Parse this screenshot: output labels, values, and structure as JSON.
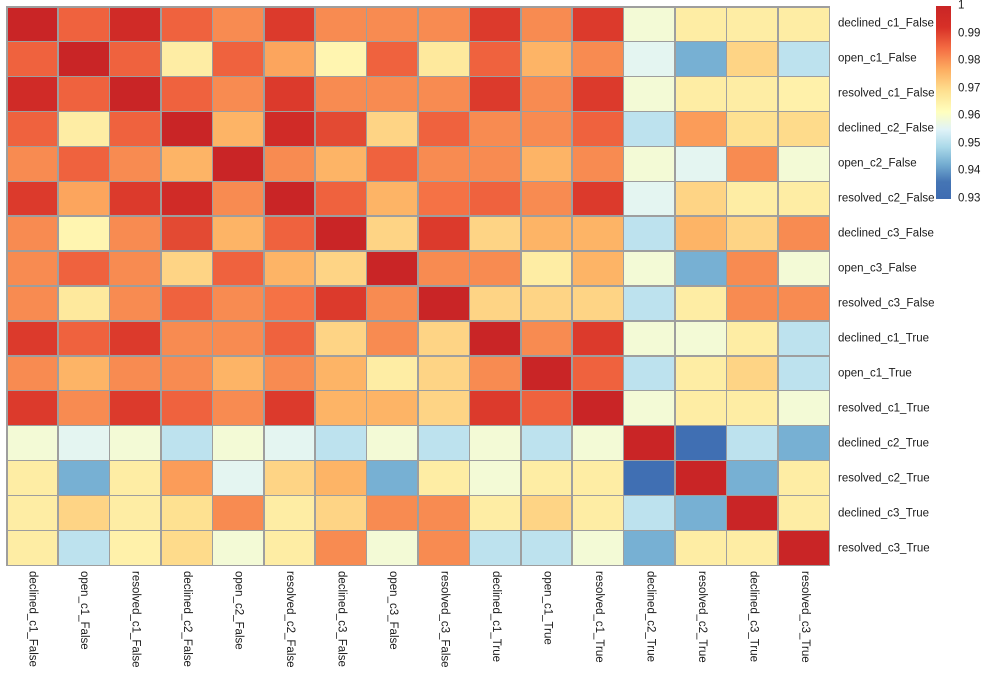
{
  "figure": {
    "background": "#ffffff",
    "grid_line_color": "#9e9e9e",
    "label_color": "#1a1a1a"
  },
  "chart_data": {
    "type": "heatmap",
    "title": "",
    "xlabel": "",
    "ylabel": "",
    "x_labels": [
      "declined_c1_False",
      "open_c1_False",
      "resolved_c1_False",
      "declined_c2_False",
      "open_c2_False",
      "resolved_c2_False",
      "declined_c3_False",
      "open_c3_False",
      "resolved_c3_False",
      "declined_c1_True",
      "open_c1_True",
      "resolved_c1_True",
      "declined_c2_True",
      "resolved_c2_True",
      "declined_c3_True",
      "resolved_c3_True"
    ],
    "y_labels": [
      "declined_c1_False",
      "open_c1_False",
      "resolved_c1_False",
      "declined_c2_False",
      "open_c2_False",
      "resolved_c2_False",
      "declined_c3_False",
      "open_c3_False",
      "resolved_c3_False",
      "declined_c1_True",
      "open_c1_True",
      "resolved_c1_True",
      "declined_c2_True",
      "resolved_c2_True",
      "declined_c3_True",
      "resolved_c3_True"
    ],
    "matrix": [
      [
        1.0,
        0.986,
        0.996,
        0.986,
        0.981,
        0.991,
        0.981,
        0.981,
        0.981,
        0.991,
        0.981,
        0.991,
        0.959,
        0.966,
        0.966,
        0.966
      ],
      [
        0.986,
        1.0,
        0.986,
        0.966,
        0.986,
        0.978,
        0.964,
        0.986,
        0.967,
        0.986,
        0.976,
        0.981,
        0.956,
        0.943,
        0.971,
        0.951
      ],
      [
        0.996,
        0.986,
        1.0,
        0.986,
        0.981,
        0.991,
        0.981,
        0.981,
        0.981,
        0.991,
        0.981,
        0.991,
        0.959,
        0.966,
        0.966,
        0.965
      ],
      [
        0.986,
        0.966,
        0.986,
        1.0,
        0.976,
        0.996,
        0.989,
        0.971,
        0.986,
        0.981,
        0.981,
        0.986,
        0.951,
        0.979,
        0.969,
        0.97
      ],
      [
        0.981,
        0.986,
        0.981,
        0.976,
        1.0,
        0.981,
        0.976,
        0.986,
        0.981,
        0.981,
        0.976,
        0.981,
        0.959,
        0.956,
        0.981,
        0.959
      ],
      [
        0.991,
        0.978,
        0.991,
        0.996,
        0.981,
        1.0,
        0.986,
        0.976,
        0.984,
        0.986,
        0.981,
        0.991,
        0.956,
        0.971,
        0.966,
        0.966
      ],
      [
        0.981,
        0.964,
        0.981,
        0.989,
        0.976,
        0.986,
        1.0,
        0.971,
        0.991,
        0.971,
        0.976,
        0.976,
        0.951,
        0.976,
        0.971,
        0.981
      ],
      [
        0.981,
        0.986,
        0.981,
        0.971,
        0.986,
        0.976,
        0.971,
        1.0,
        0.981,
        0.981,
        0.966,
        0.976,
        0.959,
        0.943,
        0.981,
        0.959
      ],
      [
        0.981,
        0.967,
        0.981,
        0.986,
        0.981,
        0.984,
        0.991,
        0.981,
        1.0,
        0.971,
        0.971,
        0.971,
        0.951,
        0.966,
        0.981,
        0.981
      ],
      [
        0.991,
        0.986,
        0.991,
        0.981,
        0.981,
        0.986,
        0.971,
        0.981,
        0.971,
        1.0,
        0.981,
        0.991,
        0.959,
        0.959,
        0.966,
        0.951
      ],
      [
        0.981,
        0.976,
        0.981,
        0.981,
        0.976,
        0.981,
        0.976,
        0.966,
        0.971,
        0.981,
        1.0,
        0.986,
        0.951,
        0.966,
        0.971,
        0.951
      ],
      [
        0.991,
        0.981,
        0.991,
        0.986,
        0.981,
        0.991,
        0.976,
        0.976,
        0.971,
        0.991,
        0.986,
        1.0,
        0.959,
        0.966,
        0.966,
        0.959
      ],
      [
        0.959,
        0.956,
        0.959,
        0.951,
        0.959,
        0.956,
        0.951,
        0.959,
        0.951,
        0.959,
        0.951,
        0.959,
        1.0,
        0.932,
        0.951,
        0.943
      ],
      [
        0.966,
        0.943,
        0.966,
        0.979,
        0.956,
        0.971,
        0.976,
        0.943,
        0.966,
        0.959,
        0.966,
        0.966,
        0.932,
        1.0,
        0.943,
        0.966
      ],
      [
        0.966,
        0.971,
        0.966,
        0.969,
        0.981,
        0.966,
        0.971,
        0.981,
        0.981,
        0.966,
        0.971,
        0.966,
        0.951,
        0.943,
        1.0,
        0.966
      ],
      [
        0.966,
        0.951,
        0.965,
        0.97,
        0.959,
        0.966,
        0.981,
        0.959,
        0.981,
        0.951,
        0.951,
        0.959,
        0.943,
        0.966,
        0.966,
        1.0
      ]
    ],
    "value_range": [
      0.93,
      1.0
    ],
    "grid": true,
    "legend_position": "right",
    "colorbar": {
      "tick_labels": [
        "1",
        "0.99",
        "0.98",
        "0.97",
        "0.96",
        "0.95",
        "0.94",
        "0.93"
      ],
      "tick_values": [
        1,
        0.99,
        0.98,
        0.97,
        0.96,
        0.95,
        0.94,
        0.93
      ]
    },
    "colormap": {
      "name": "RdYlBu_r",
      "stops": [
        [
          0.0,
          "#3e6cb2"
        ],
        [
          0.09,
          "#4575b4"
        ],
        [
          0.18,
          "#74add1"
        ],
        [
          0.27,
          "#abd9e9"
        ],
        [
          0.36,
          "#e0f3f8"
        ],
        [
          0.45,
          "#ffffbf"
        ],
        [
          0.56,
          "#fee090"
        ],
        [
          0.67,
          "#fdae61"
        ],
        [
          0.78,
          "#f46d43"
        ],
        [
          0.89,
          "#d73027"
        ],
        [
          1.0,
          "#c92526"
        ]
      ]
    }
  }
}
